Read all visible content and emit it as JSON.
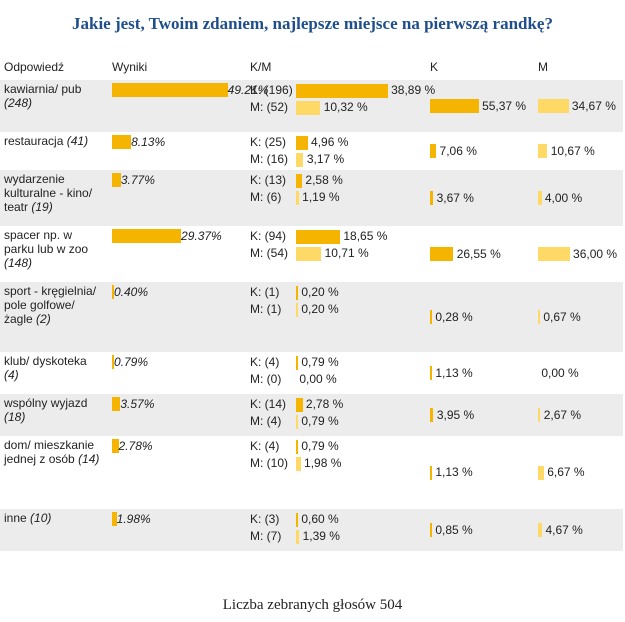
{
  "title": "Jakie jest, Twoim zdaniem, najlepsze miejsce na pierwszą randkę?",
  "headers": {
    "answer": "Odpowiedź",
    "results": "Wyniki",
    "km": "K/M",
    "k": "K",
    "m": "M"
  },
  "footer": "Liczba zebranych głosów 504",
  "colors": {
    "k_bar": "#f5b400",
    "m_bar": "#ffd966",
    "title": "#1f4e8c"
  },
  "chart_data": {
    "type": "table",
    "title": "Jakie jest, Twoim zdaniem, najlepsze miejsce na pierwszą randkę?",
    "total_votes": 504,
    "rows": [
      {
        "label": "kawiarnia/ pub",
        "count": "(248)",
        "result": 49.21,
        "result_text": "49.21%",
        "km_k": "K: (196)",
        "km_k_value": 38.89,
        "km_k_text": "38,89 %",
        "km_m": "M: (52)",
        "km_m_value": 10.32,
        "km_m_text": "10,32 %",
        "k_value": 55.37,
        "k_text": "55,37 %",
        "m_value": 34.67,
        "m_text": "34,67 %"
      },
      {
        "label": "restauracja",
        "count": "(41)",
        "result": 8.13,
        "result_text": "8.13%",
        "km_k": "K: (25)",
        "km_k_value": 4.96,
        "km_k_text": "4,96 %",
        "km_m": "M: (16)",
        "km_m_value": 3.17,
        "km_m_text": "3,17 %",
        "k_value": 7.06,
        "k_text": "7,06 %",
        "m_value": 10.67,
        "m_text": "10,67 %"
      },
      {
        "label": "wydarzenie kulturalne - kino/ teatr",
        "count": "(19)",
        "result": 3.77,
        "result_text": "3.77%",
        "km_k": "K: (13)",
        "km_k_value": 2.58,
        "km_k_text": "2,58 %",
        "km_m": "M: (6)",
        "km_m_value": 1.19,
        "km_m_text": "1,19 %",
        "k_value": 3.67,
        "k_text": "3,67 %",
        "m_value": 4.0,
        "m_text": "4,00 %"
      },
      {
        "label": "spacer np. w parku lub w zoo",
        "count": "(148)",
        "result": 29.37,
        "result_text": "29.37%",
        "km_k": "K: (94)",
        "km_k_value": 18.65,
        "km_k_text": "18,65 %",
        "km_m": "M: (54)",
        "km_m_value": 10.71,
        "km_m_text": "10,71 %",
        "k_value": 26.55,
        "k_text": "26,55 %",
        "m_value": 36.0,
        "m_text": "36,00 %"
      },
      {
        "label": "sport - kręgielnia/ pole golfowe/ żagle",
        "count": "(2)",
        "result": 0.4,
        "result_text": "0.40%",
        "km_k": "K: (1)",
        "km_k_value": 0.2,
        "km_k_text": "0,20 %",
        "km_m": "M: (1)",
        "km_m_value": 0.2,
        "km_m_text": "0,20 %",
        "k_value": 0.28,
        "k_text": "0,28 %",
        "m_value": 0.67,
        "m_text": "0,67 %"
      },
      {
        "label": "klub/ dyskoteka",
        "count": "(4)",
        "result": 0.79,
        "result_text": "0.79%",
        "km_k": "K: (4)",
        "km_k_value": 0.79,
        "km_k_text": "0,79 %",
        "km_m": "M: (0)",
        "km_m_value": 0.0,
        "km_m_text": "0,00 %",
        "k_value": 1.13,
        "k_text": "1,13 %",
        "m_value": 0.0,
        "m_text": "0,00 %"
      },
      {
        "label": "wspólny wyjazd",
        "count": "(18)",
        "result": 3.57,
        "result_text": "3.57%",
        "km_k": "K: (14)",
        "km_k_value": 2.78,
        "km_k_text": "2,78 %",
        "km_m": "M: (4)",
        "km_m_value": 0.79,
        "km_m_text": "0,79 %",
        "k_value": 3.95,
        "k_text": "3,95 %",
        "m_value": 2.67,
        "m_text": "2,67 %"
      },
      {
        "label": "dom/ mieszkanie jednej z osób",
        "count": "(14)",
        "result": 2.78,
        "result_text": "2.78%",
        "km_k": "K: (4)",
        "km_k_value": 0.79,
        "km_k_text": "0,79 %",
        "km_m": "M: (10)",
        "km_m_value": 1.98,
        "km_m_text": "1,98 %",
        "k_value": 1.13,
        "k_text": "1,13 %",
        "m_value": 6.67,
        "m_text": "6,67 %"
      },
      {
        "label": "inne",
        "count": "(10)",
        "result": 1.98,
        "result_text": "1.98%",
        "km_k": "K: (3)",
        "km_k_value": 0.6,
        "km_k_text": "0,60 %",
        "km_m": "M: (7)",
        "km_m_value": 1.39,
        "km_m_text": "1,39 %",
        "k_value": 0.85,
        "k_text": "0,85 %",
        "m_value": 4.67,
        "m_text": "4,67 %"
      }
    ]
  }
}
